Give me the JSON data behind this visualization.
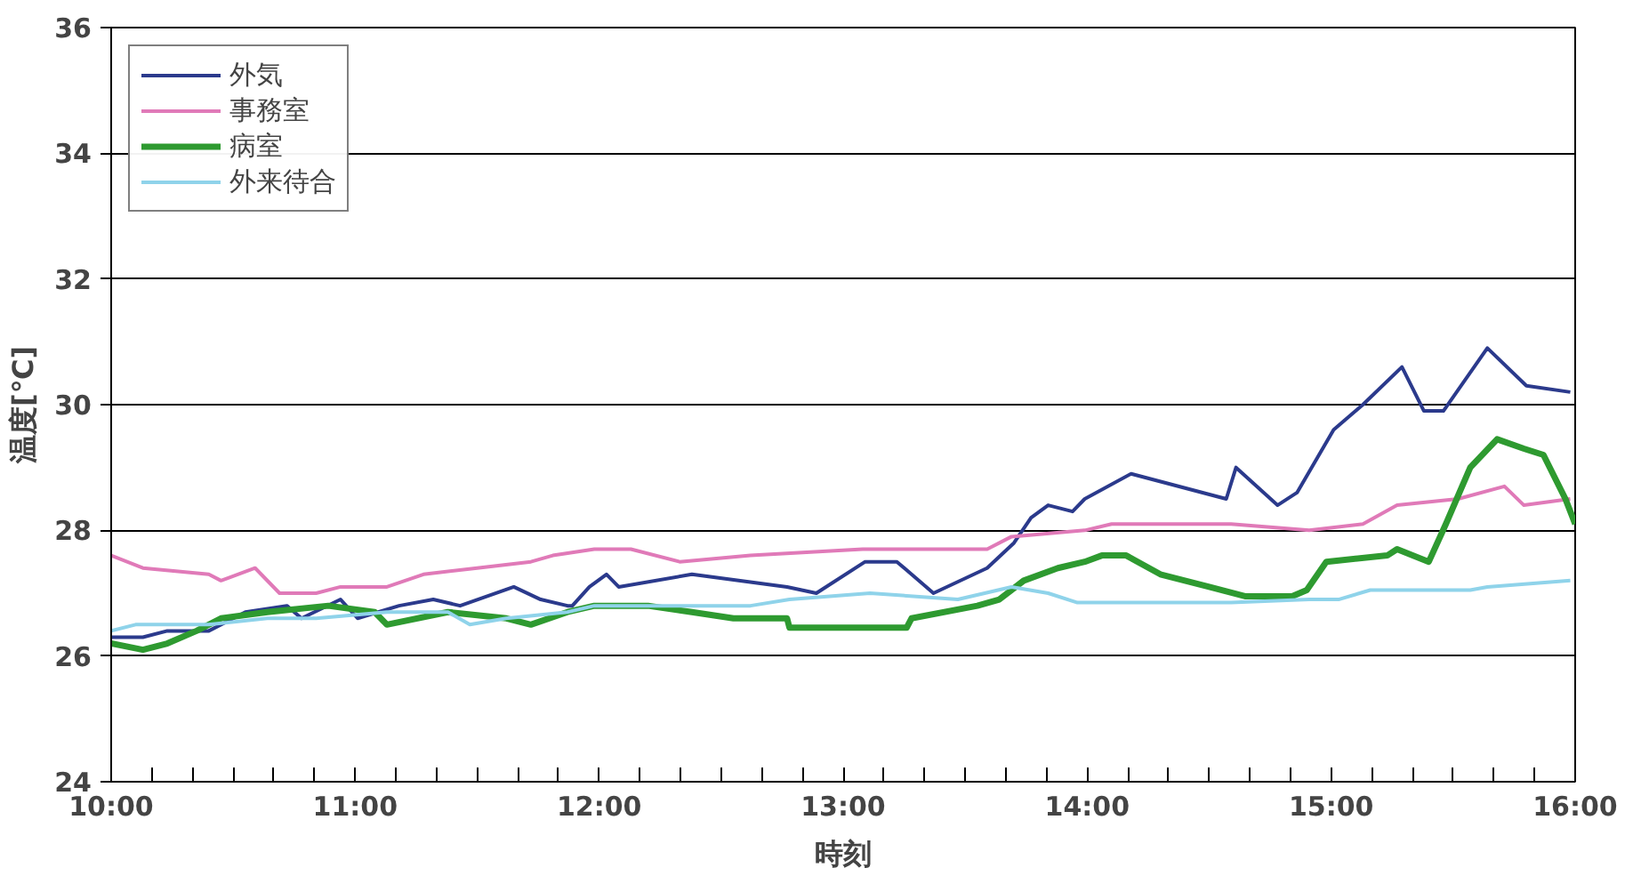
{
  "chart_data": {
    "type": "line",
    "xlabel": "時刻",
    "ylabel": "温度[℃]",
    "xlim": [
      10,
      16
    ],
    "ylim": [
      24,
      36
    ],
    "yticks": [
      24,
      26,
      28,
      30,
      32,
      34,
      36
    ],
    "xticks": [
      {
        "value": 10,
        "label": "10:00"
      },
      {
        "value": 10.1667,
        "label": null
      },
      {
        "value": 10.3333,
        "label": null
      },
      {
        "value": 10.5,
        "label": null
      },
      {
        "value": 10.6667,
        "label": null
      },
      {
        "value": 10.8333,
        "label": null
      },
      {
        "value": 11,
        "label": "11:00"
      },
      {
        "value": 11.1667,
        "label": null
      },
      {
        "value": 11.3333,
        "label": null
      },
      {
        "value": 11.5,
        "label": null
      },
      {
        "value": 11.6667,
        "label": null
      },
      {
        "value": 11.8333,
        "label": null
      },
      {
        "value": 12,
        "label": "12:00"
      },
      {
        "value": 12.1667,
        "label": null
      },
      {
        "value": 12.3333,
        "label": null
      },
      {
        "value": 12.5,
        "label": null
      },
      {
        "value": 12.6667,
        "label": null
      },
      {
        "value": 12.8333,
        "label": null
      },
      {
        "value": 13,
        "label": "13:00"
      },
      {
        "value": 13.1667,
        "label": null
      },
      {
        "value": 13.3333,
        "label": null
      },
      {
        "value": 13.5,
        "label": null
      },
      {
        "value": 13.6667,
        "label": null
      },
      {
        "value": 13.8333,
        "label": null
      },
      {
        "value": 14,
        "label": "14:00"
      },
      {
        "value": 14.1667,
        "label": null
      },
      {
        "value": 14.3333,
        "label": null
      },
      {
        "value": 14.5,
        "label": null
      },
      {
        "value": 14.6667,
        "label": null
      },
      {
        "value": 14.8333,
        "label": null
      },
      {
        "value": 15,
        "label": "15:00"
      },
      {
        "value": 15.1667,
        "label": null
      },
      {
        "value": 15.3333,
        "label": null
      },
      {
        "value": 15.5,
        "label": null
      },
      {
        "value": 15.6667,
        "label": null
      },
      {
        "value": 15.8333,
        "label": null
      },
      {
        "value": 16,
        "label": "16:00"
      }
    ],
    "grid": "y",
    "legend": "top left",
    "line_style": "solid",
    "marker": "none",
    "series": [
      {
        "name": "外気",
        "color": "#2b3a8c",
        "x": [
          10.0,
          10.13,
          10.23,
          10.4,
          10.55,
          10.72,
          10.78,
          10.94,
          11.01,
          11.18,
          11.32,
          11.43,
          11.65,
          11.76,
          11.87,
          11.89,
          11.96,
          12.03,
          12.08,
          12.38,
          12.77,
          12.89,
          13.09,
          13.22,
          13.37,
          13.59,
          13.7,
          13.77,
          13.84,
          13.94,
          13.99,
          14.18,
          14.57,
          14.61,
          14.78,
          14.86,
          15.01,
          15.13,
          15.29,
          15.38,
          15.46,
          15.64,
          15.8,
          15.98
        ],
        "values": [
          26.3,
          26.3,
          26.4,
          26.4,
          26.7,
          26.8,
          26.6,
          26.9,
          26.6,
          26.8,
          26.9,
          26.8,
          27.1,
          26.9,
          26.8,
          26.8,
          27.1,
          27.3,
          27.1,
          27.3,
          27.1,
          27.0,
          27.5,
          27.5,
          27.0,
          27.4,
          27.8,
          28.2,
          28.4,
          28.3,
          28.5,
          28.9,
          28.5,
          29.0,
          28.4,
          28.6,
          29.6,
          30.0,
          30.6,
          29.9,
          29.9,
          30.9,
          30.3,
          30.2
        ]
      },
      {
        "name": "事務室",
        "color": "#e07ab8",
        "x": [
          10.0,
          10.13,
          10.4,
          10.45,
          10.59,
          10.69,
          10.84,
          10.94,
          11.13,
          11.28,
          11.5,
          11.72,
          11.81,
          11.98,
          12.13,
          12.33,
          12.62,
          13.08,
          13.59,
          13.69,
          13.99,
          14.1,
          14.59,
          14.91,
          15.13,
          15.27,
          15.52,
          15.71,
          15.79,
          15.98
        ],
        "values": [
          27.6,
          27.4,
          27.3,
          27.2,
          27.4,
          27.0,
          27.0,
          27.1,
          27.1,
          27.3,
          27.4,
          27.5,
          27.6,
          27.7,
          27.7,
          27.5,
          27.6,
          27.7,
          27.7,
          27.9,
          28.0,
          28.1,
          28.1,
          28.0,
          28.1,
          28.4,
          28.5,
          28.7,
          28.4,
          28.5
        ]
      },
      {
        "name": "病室",
        "color": "#2e9a30",
        "x": [
          10.0,
          10.13,
          10.23,
          10.35,
          10.45,
          10.64,
          10.89,
          11.08,
          11.13,
          11.38,
          11.62,
          11.72,
          11.87,
          11.98,
          12.2,
          12.38,
          12.55,
          12.62,
          12.77,
          12.78,
          13.26,
          13.28,
          13.55,
          13.64,
          13.74,
          13.88,
          13.99,
          14.06,
          14.16,
          14.3,
          14.5,
          14.65,
          14.84,
          14.9,
          14.98,
          15.23,
          15.27,
          15.4,
          15.47,
          15.57,
          15.68,
          15.79,
          15.87,
          15.96,
          16.0
        ],
        "values": [
          26.2,
          26.1,
          26.2,
          26.4,
          26.6,
          26.7,
          26.8,
          26.7,
          26.5,
          26.7,
          26.6,
          26.5,
          26.7,
          26.8,
          26.8,
          26.7,
          26.6,
          26.6,
          26.6,
          26.45,
          26.45,
          26.6,
          26.8,
          26.9,
          27.2,
          27.4,
          27.5,
          27.6,
          27.6,
          27.3,
          27.1,
          26.95,
          26.95,
          27.05,
          27.5,
          27.6,
          27.7,
          27.5,
          28.1,
          29.0,
          29.45,
          29.3,
          29.2,
          28.5,
          28.1
        ]
      },
      {
        "name": "外来待合",
        "color": "#8fd3ea",
        "x": [
          10.0,
          10.1,
          10.4,
          10.64,
          10.84,
          11.13,
          11.38,
          11.47,
          11.62,
          11.87,
          11.98,
          12.38,
          12.62,
          12.78,
          13.11,
          13.47,
          13.69,
          13.84,
          13.96,
          14.3,
          14.59,
          14.91,
          15.03,
          15.16,
          15.57,
          15.64,
          15.98
        ],
        "values": [
          26.4,
          26.5,
          26.5,
          26.6,
          26.6,
          26.7,
          26.7,
          26.5,
          26.6,
          26.7,
          26.8,
          26.8,
          26.8,
          26.9,
          27.0,
          26.9,
          27.1,
          27.0,
          26.85,
          26.85,
          26.85,
          26.9,
          26.9,
          27.05,
          27.05,
          27.1,
          27.2
        ]
      }
    ]
  }
}
